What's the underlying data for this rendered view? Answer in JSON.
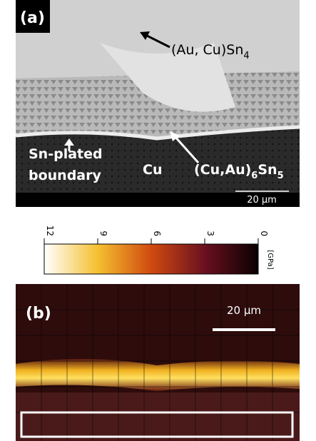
{
  "panel_a": {
    "label": "(a)",
    "phase_top": [
      "(Au, Cu)Sn",
      "4"
    ],
    "boundary": [
      "Sn-plated",
      "boundary"
    ],
    "substrate": "Cu",
    "phase_interface": [
      "(Cu,Au)",
      "6",
      "Sn",
      "5"
    ],
    "scale_bar": "20 µm"
  },
  "colorbar": {
    "range": [
      12,
      0
    ],
    "ticks": [
      12,
      9,
      6,
      3,
      0
    ],
    "unit": "[GPa]"
  },
  "panel_b": {
    "label": "(b)",
    "scale_bar": "20 µm"
  }
}
